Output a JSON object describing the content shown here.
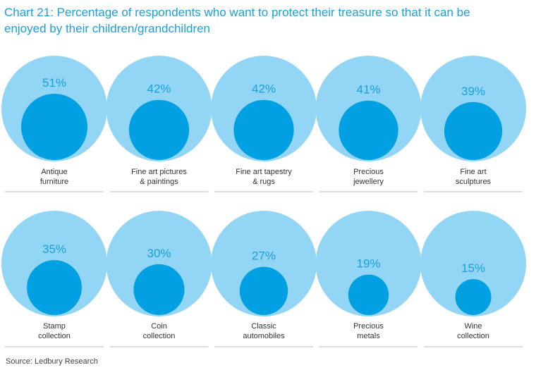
{
  "colors": {
    "outer": "#92d5f4",
    "inner": "#00a0e3",
    "title": "#1ba0dd",
    "percent": "#1ba0dd",
    "label": "#333333",
    "rule": "#bdbdbd"
  },
  "chart_data": {
    "type": "bubble",
    "title": "Chart 21: Percentage of respondents who want to protect their treasure so that it can be enjoyed by their children/grandchildren",
    "source": "Source: Ledbury Research",
    "value_format": "percent",
    "items": [
      {
        "label": [
          "Antique",
          "furniture"
        ],
        "value": 51,
        "display": "51%"
      },
      {
        "label": [
          "Fine art pictures",
          "& paintings"
        ],
        "value": 42,
        "display": "42%"
      },
      {
        "label": [
          "Fine art tapestry",
          "& rugs"
        ],
        "value": 42,
        "display": "42%"
      },
      {
        "label": [
          "Precious",
          "jewellery"
        ],
        "value": 41,
        "display": "41%"
      },
      {
        "label": [
          "Fine art",
          "sculptures"
        ],
        "value": 39,
        "display": "39%"
      },
      {
        "label": [
          "Stamp",
          "collection"
        ],
        "value": 35,
        "display": "35%"
      },
      {
        "label": [
          "Coin",
          "collection"
        ],
        "value": 30,
        "display": "30%"
      },
      {
        "label": [
          "Classic",
          "automobiles"
        ],
        "value": 27,
        "display": "27%"
      },
      {
        "label": [
          "Precious",
          "metals"
        ],
        "value": 19,
        "display": "19%"
      },
      {
        "label": [
          "Wine",
          "collection"
        ],
        "value": 15,
        "display": "15%"
      }
    ]
  }
}
